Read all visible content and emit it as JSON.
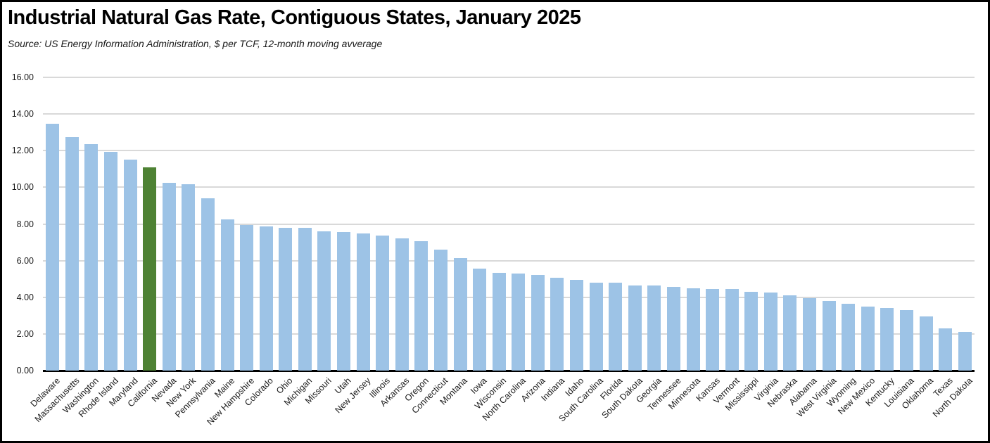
{
  "title": "Industrial Natural Gas Rate, Contiguous States, January 2025",
  "source_note": "Source:  US Energy Information Administration, $ per TCF, 12-month moving avverage",
  "colors": {
    "bar": "#9dc3e6",
    "highlight": "#4e8234",
    "gridline": "#d9d9d9",
    "axis": "#000000",
    "background": "#ffffff",
    "border": "#000000"
  },
  "chart_data": {
    "type": "bar",
    "title": "Industrial Natural Gas Rate, Contiguous States, January 2025",
    "subtitle": "Source:  US Energy Information Administration, $ per TCF, 12-month moving avverage",
    "ylabel": "$ per TCF",
    "xlabel": "",
    "ylim": [
      0,
      16
    ],
    "ytick_step": 2,
    "ytick_decimals": 2,
    "grid": true,
    "legend": false,
    "xlabel_rotation_deg": 45,
    "highlight_category": "California",
    "categories": [
      "Delaware",
      "Massachusetts",
      "Washington",
      "Rhode Island",
      "Maryland",
      "California",
      "Nevada",
      "New York",
      "Pennsylvania",
      "Maine",
      "New Hampshire",
      "Colorado",
      "Ohio",
      "Michigan",
      "Missouri",
      "Utah",
      "New Jersey",
      "Illinois",
      "Arkansas",
      "Oregon",
      "Connecticut",
      "Montana",
      "Iowa",
      "Wisconsin",
      "North Carolina",
      "Arizona",
      "Indiana",
      "Idaho",
      "South Carolina",
      "Florida",
      "South Dakota",
      "Georgia",
      "Tennessee",
      "Minnesota",
      "Kansas",
      "Vermont",
      "Mississippi",
      "Virginia",
      "Nebraska",
      "Alabama",
      "West Virginia",
      "Wyoming",
      "New Mexico",
      "Kentucky",
      "Louisiana",
      "Oklahoma",
      "Texas",
      "North Dakota"
    ],
    "values": [
      13.45,
      12.75,
      12.35,
      11.95,
      11.5,
      11.1,
      10.25,
      10.15,
      9.4,
      8.25,
      7.95,
      7.85,
      7.8,
      7.8,
      7.6,
      7.55,
      7.5,
      7.35,
      7.2,
      7.05,
      6.6,
      6.15,
      5.55,
      5.35,
      5.3,
      5.2,
      5.05,
      4.95,
      4.8,
      4.8,
      4.65,
      4.65,
      4.55,
      4.5,
      4.45,
      4.45,
      4.3,
      4.25,
      4.1,
      3.95,
      3.8,
      3.65,
      3.5,
      3.4,
      3.3,
      2.95,
      2.3,
      2.1
    ]
  }
}
